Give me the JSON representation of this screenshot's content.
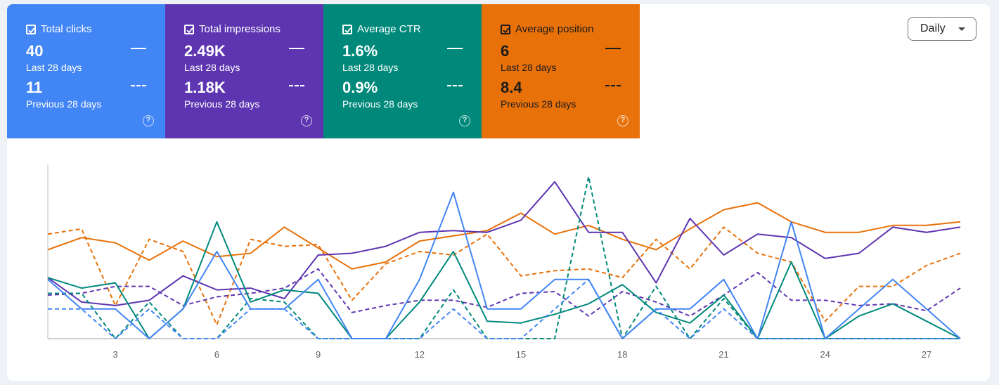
{
  "metrics": [
    {
      "title": "Total clicks",
      "current": "40",
      "current_label": "Last 28 days",
      "previous": "11",
      "previous_label": "Previous 28 days",
      "color": "#4285f4",
      "text_color": "#ffffff"
    },
    {
      "title": "Total impressions",
      "current": "2.49K",
      "current_label": "Last 28 days",
      "previous": "1.18K",
      "previous_label": "Previous 28 days",
      "color": "#5e35b1",
      "text_color": "#ffffff"
    },
    {
      "title": "Average CTR",
      "current": "1.6%",
      "current_label": "Last 28 days",
      "previous": "0.9%",
      "previous_label": "Previous 28 days",
      "color": "#00897b",
      "text_color": "#ffffff"
    },
    {
      "title": "Average position",
      "current": "6",
      "current_label": "Last 28 days",
      "previous": "8.4",
      "previous_label": "Previous 28 days",
      "color": "#e8710a",
      "text_color": "#1b1b1b"
    }
  ],
  "help_glyph": "?",
  "granularity": {
    "label": "Daily"
  },
  "chart_data": {
    "type": "line",
    "x": [
      1,
      2,
      3,
      4,
      5,
      6,
      7,
      8,
      9,
      10,
      11,
      12,
      13,
      14,
      15,
      16,
      17,
      18,
      19,
      20,
      21,
      22,
      23,
      24,
      25,
      26,
      27,
      28
    ],
    "tick_labels": [
      "3",
      "6",
      "9",
      "12",
      "15",
      "18",
      "21",
      "24",
      "27"
    ],
    "tick_values": [
      3,
      6,
      9,
      12,
      15,
      18,
      21,
      24,
      27
    ],
    "ylim": [
      0,
      100
    ],
    "series": [
      {
        "name": "Average position (Last 28 days)",
        "color": "#e8710a",
        "dashed": false,
        "values": [
          51,
          58,
          55,
          45,
          56,
          47,
          49,
          64,
          52,
          40,
          44,
          56,
          59,
          62,
          72,
          60,
          65,
          57,
          51,
          63,
          74,
          78,
          67,
          61,
          61,
          65,
          65,
          67
        ]
      },
      {
        "name": "Average position (Previous 28 days)",
        "color": "#e8710a",
        "dashed": true,
        "values": [
          60,
          63,
          19,
          57,
          50,
          8,
          57,
          53,
          54,
          22,
          43,
          50,
          48,
          60,
          36,
          39,
          40,
          35,
          57,
          40,
          64,
          49,
          44,
          10,
          30,
          30,
          42,
          49
        ]
      },
      {
        "name": "Total impressions (Last 28 days)",
        "color": "#5e35b1",
        "dashed": false,
        "values": [
          35,
          21,
          19,
          22,
          36,
          28,
          29,
          23,
          48,
          49,
          53,
          61,
          62,
          61,
          68,
          90,
          61,
          61,
          32,
          69,
          48,
          60,
          58,
          46,
          49,
          64,
          61,
          64
        ]
      },
      {
        "name": "Total impressions (Previous 28 days)",
        "color": "#5e35b1",
        "dashed": true,
        "values": [
          25,
          26,
          30,
          30,
          19,
          24,
          26,
          29,
          40,
          15,
          19,
          22,
          22,
          18,
          26,
          27,
          13,
          27,
          21,
          13,
          25,
          38,
          22,
          22,
          19,
          20,
          16,
          29
        ]
      },
      {
        "name": "Average CTR (Last 28 days)",
        "color": "#00897b",
        "dashed": false,
        "values": [
          35,
          29,
          32,
          0,
          17,
          67,
          21,
          28,
          26,
          0,
          0,
          21,
          50,
          10,
          9,
          14,
          20,
          31,
          15,
          9,
          25,
          0,
          44,
          0,
          13,
          20,
          10,
          0
        ]
      },
      {
        "name": "Average CTR (Previous 28 days)",
        "color": "#00897b",
        "dashed": true,
        "values": [
          26,
          26,
          0,
          21,
          0,
          0,
          23,
          21,
          0,
          0,
          0,
          0,
          28,
          0,
          0,
          0,
          93,
          0,
          30,
          0,
          23,
          0,
          0,
          0,
          0,
          0,
          0,
          0
        ]
      },
      {
        "name": "Total clicks (Last 28 days)",
        "color": "#4285f4",
        "dashed": false,
        "values": [
          34,
          17,
          17,
          0,
          17,
          50,
          17,
          17,
          34,
          0,
          0,
          34,
          84,
          17,
          17,
          34,
          34,
          0,
          17,
          17,
          34,
          0,
          67,
          0,
          17,
          34,
          17,
          0
        ]
      },
      {
        "name": "Total clicks (Previous 28 days)",
        "color": "#4285f4",
        "dashed": true,
        "values": [
          17,
          17,
          0,
          17,
          0,
          0,
          17,
          17,
          0,
          0,
          0,
          0,
          17,
          0,
          0,
          17,
          34,
          0,
          17,
          0,
          17,
          0,
          0,
          0,
          0,
          0,
          0,
          0
        ]
      }
    ]
  }
}
